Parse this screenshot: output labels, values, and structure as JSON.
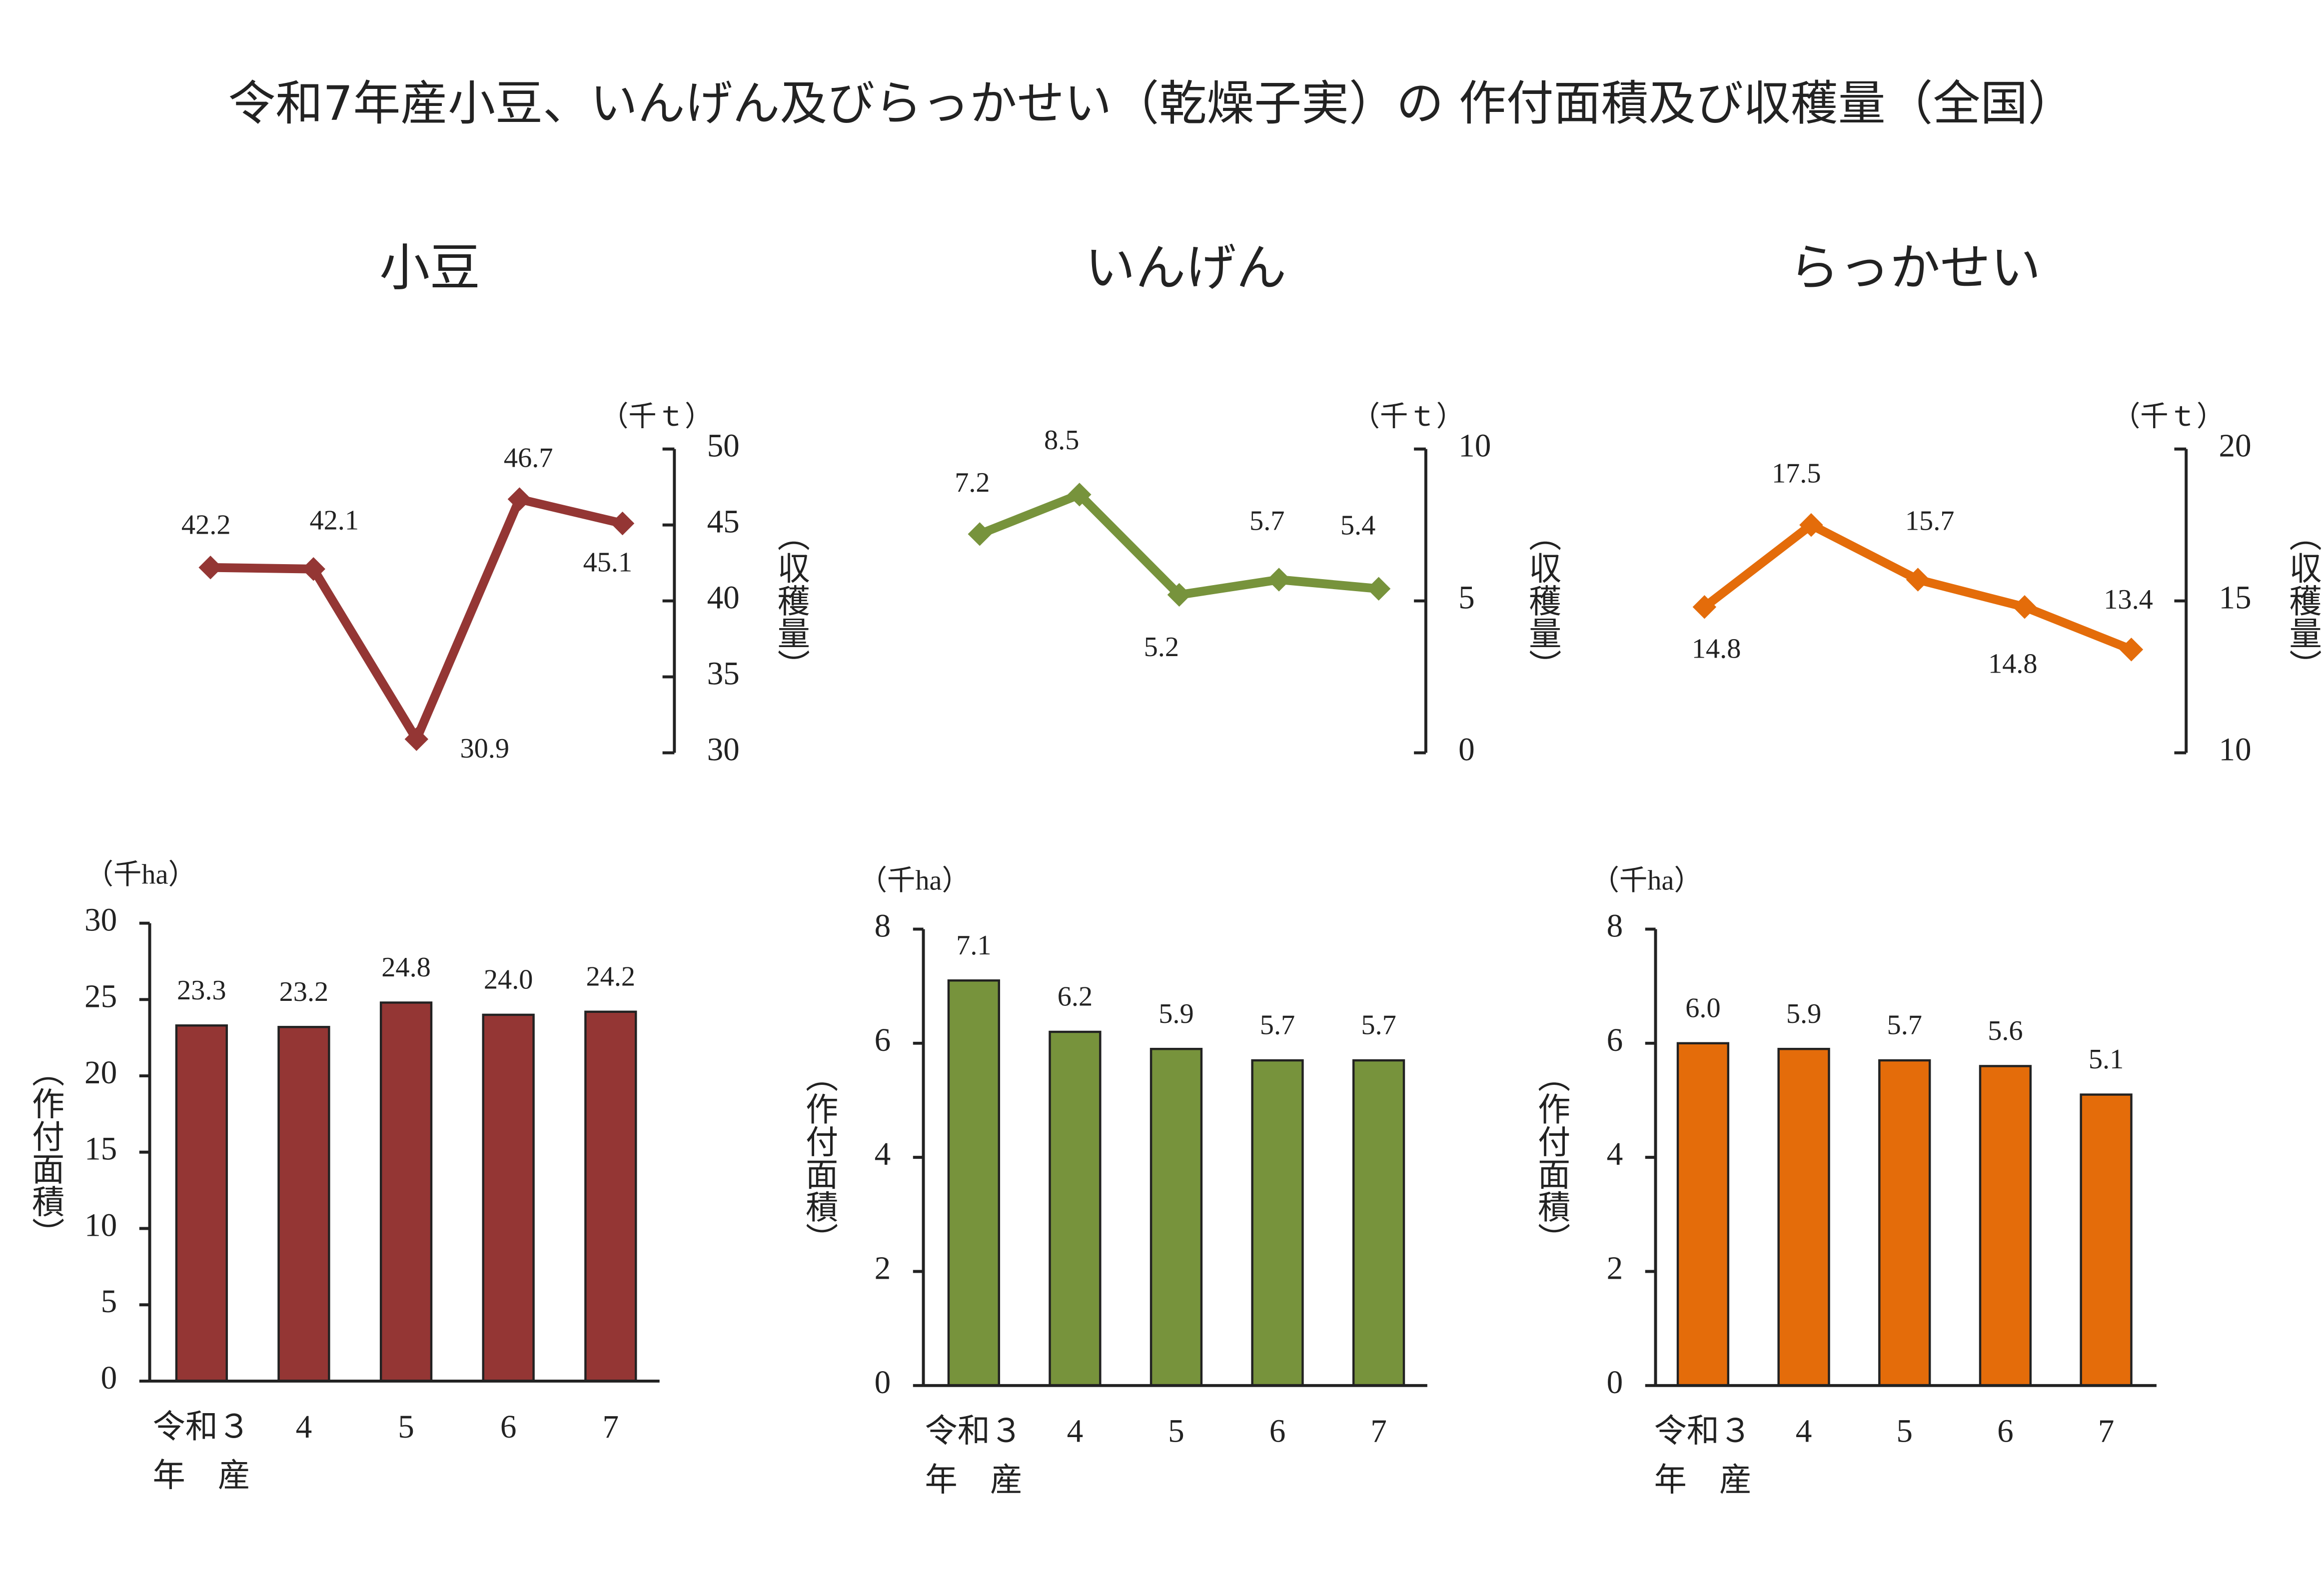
{
  "title": "令和7年産小豆、いんげん及びらっかせい（乾燥子実）の 作付面積及び収穫量（全国）",
  "chart_data": [
    {
      "type": "line",
      "title": "小豆",
      "ylabel": "（収穫量）",
      "yunit": "（千ｔ）",
      "categories": [
        null,
        null,
        null,
        null,
        null
      ],
      "values": [
        42.2,
        42.1,
        30.9,
        46.7,
        45.1
      ],
      "color": "#943634",
      "ylim": [
        30,
        50
      ],
      "yticks": [
        30,
        35,
        40,
        45,
        50
      ]
    },
    {
      "type": "line",
      "title": "いんげん",
      "ylabel": "（収穫量）",
      "yunit": "（千ｔ）",
      "categories": [
        null,
        null,
        null,
        null,
        null
      ],
      "values": [
        7.2,
        8.5,
        5.2,
        5.7,
        5.4
      ],
      "color": "#77933c",
      "ylim": [
        0,
        10
      ],
      "yticks": [
        0,
        5,
        10
      ]
    },
    {
      "type": "line",
      "title": "らっかせい",
      "ylabel": "（収穫量）",
      "yunit": "（千ｔ）",
      "categories": [
        null,
        null,
        null,
        null,
        null
      ],
      "values": [
        14.8,
        17.5,
        15.7,
        14.8,
        13.4
      ],
      "color": "#e46c0a",
      "ylim": [
        10,
        20
      ],
      "yticks": [
        10,
        15,
        20
      ]
    },
    {
      "type": "bar",
      "ylabel": "（作付面積）",
      "yunit": "（千ha）",
      "categories": [
        "令和３",
        "4",
        "5",
        "6",
        "7"
      ],
      "xlabel": "年　産",
      "values": [
        23.3,
        23.2,
        24.8,
        24.0,
        24.2
      ],
      "value_labels": [
        "23.3",
        "23.2",
        "24.8",
        "24.0",
        "24.2"
      ],
      "color": "#943634",
      "ylim": [
        0,
        30
      ],
      "yticks": [
        0,
        5,
        10,
        15,
        20,
        25,
        30
      ]
    },
    {
      "type": "bar",
      "ylabel": "（作付面積）",
      "yunit": "（千ha）",
      "categories": [
        "令和３",
        "4",
        "5",
        "6",
        "7"
      ],
      "xlabel": "年　産",
      "values": [
        7.1,
        6.2,
        5.9,
        5.7,
        5.7
      ],
      "color": "#77933c",
      "ylim": [
        0,
        8
      ],
      "yticks": [
        0,
        2,
        4,
        6,
        8
      ]
    },
    {
      "type": "bar",
      "ylabel": "（作付面積）",
      "yunit": "（千ha）",
      "categories": [
        "令和３",
        "4",
        "5",
        "6",
        "7"
      ],
      "xlabel": "年　産",
      "values": [
        6.0,
        5.9,
        5.7,
        5.6,
        5.1
      ],
      "value_labels": [
        "6.0",
        "5.9",
        "5.7",
        "5.6",
        "5.1"
      ],
      "color": "#e46c0a",
      "ylim": [
        0,
        8
      ],
      "yticks": [
        0,
        2,
        4,
        6,
        8
      ]
    }
  ]
}
